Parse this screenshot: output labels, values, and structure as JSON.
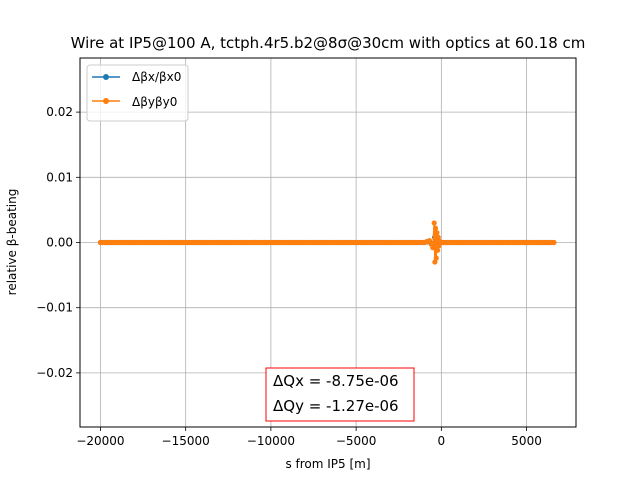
{
  "chart_data": {
    "type": "line",
    "title": "Wire at IP5@100 A, tctph.4r5.b2@8σ@30cm with optics at 60.18 cm",
    "xlabel": "s from IP5 [m]",
    "ylabel": "relative β-beating",
    "xlim": [
      -21200,
      7900
    ],
    "ylim": [
      -0.0283,
      0.0283
    ],
    "xticks": [
      -20000,
      -15000,
      -10000,
      -5000,
      0,
      5000
    ],
    "xtick_labels": [
      "−20000",
      "−15000",
      "−10000",
      "−5000",
      "0",
      "5000"
    ],
    "yticks": [
      -0.02,
      -0.01,
      0.0,
      0.01,
      0.02
    ],
    "ytick_labels": [
      "−0.02",
      "−0.01",
      "0.00",
      "0.01",
      "0.02"
    ],
    "grid": true,
    "legend_position": "top-left",
    "series": [
      {
        "name": "Δβx/βx0",
        "color": "#1f77b4",
        "x": [
          -20000,
          -15000,
          -10000,
          -5000,
          -1500,
          -1000,
          -700,
          -500,
          -400,
          -350,
          -300,
          -250,
          -200,
          -150,
          -100,
          0,
          1000,
          3000,
          6600
        ],
        "y": [
          0,
          0,
          0,
          0,
          0,
          0,
          0.0002,
          -0.0005,
          0.0008,
          -0.0003,
          0.0006,
          -0.0006,
          0.0004,
          -0.0002,
          0.0001,
          0,
          0,
          0,
          0
        ]
      },
      {
        "name": "Δβyβy0",
        "color": "#ff7f0e",
        "x": [
          -20000,
          -15000,
          -10000,
          -5000,
          -1500,
          -1000,
          -700,
          -500,
          -420,
          -380,
          -340,
          -300,
          -260,
          -220,
          -180,
          -140,
          -100,
          0,
          1000,
          3000,
          6600
        ],
        "y": [
          0,
          0,
          0,
          0,
          0,
          0,
          0.0003,
          -0.0008,
          0.003,
          -0.003,
          0.0022,
          -0.0024,
          0.0015,
          -0.0012,
          0.0008,
          -0.0005,
          0.0002,
          0,
          0,
          0,
          0
        ]
      }
    ],
    "annotation": {
      "lines": [
        "ΔQx = -8.75e-06",
        "ΔQy = -1.27e-06"
      ],
      "border_color": "#ff0000"
    }
  }
}
